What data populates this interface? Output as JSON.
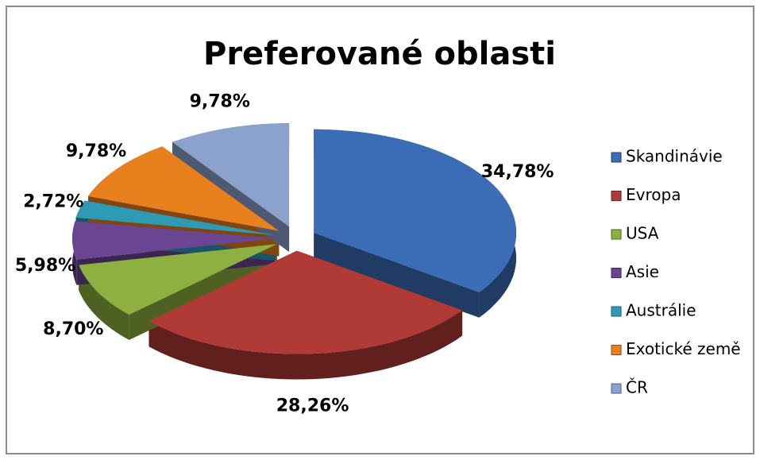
{
  "chart_data": {
    "type": "pie",
    "title": "Preferované oblasti",
    "categories": [
      "Skandinávie",
      "Evropa",
      "USA",
      "Asie",
      "Austrálie",
      "Exotické země",
      "ČR"
    ],
    "values": [
      34.78,
      28.26,
      8.7,
      5.98,
      2.72,
      9.78,
      9.78
    ],
    "value_labels": [
      "34,78%",
      "28,26%",
      "8,70%",
      "5,98%",
      "2,72%",
      "9,78%",
      "9,78%"
    ],
    "colors": [
      "#3a6db5",
      "#b03a36",
      "#8db040",
      "#6a4592",
      "#2e9bb5",
      "#e8801e",
      "#8aa2cc"
    ],
    "legend": "right"
  }
}
